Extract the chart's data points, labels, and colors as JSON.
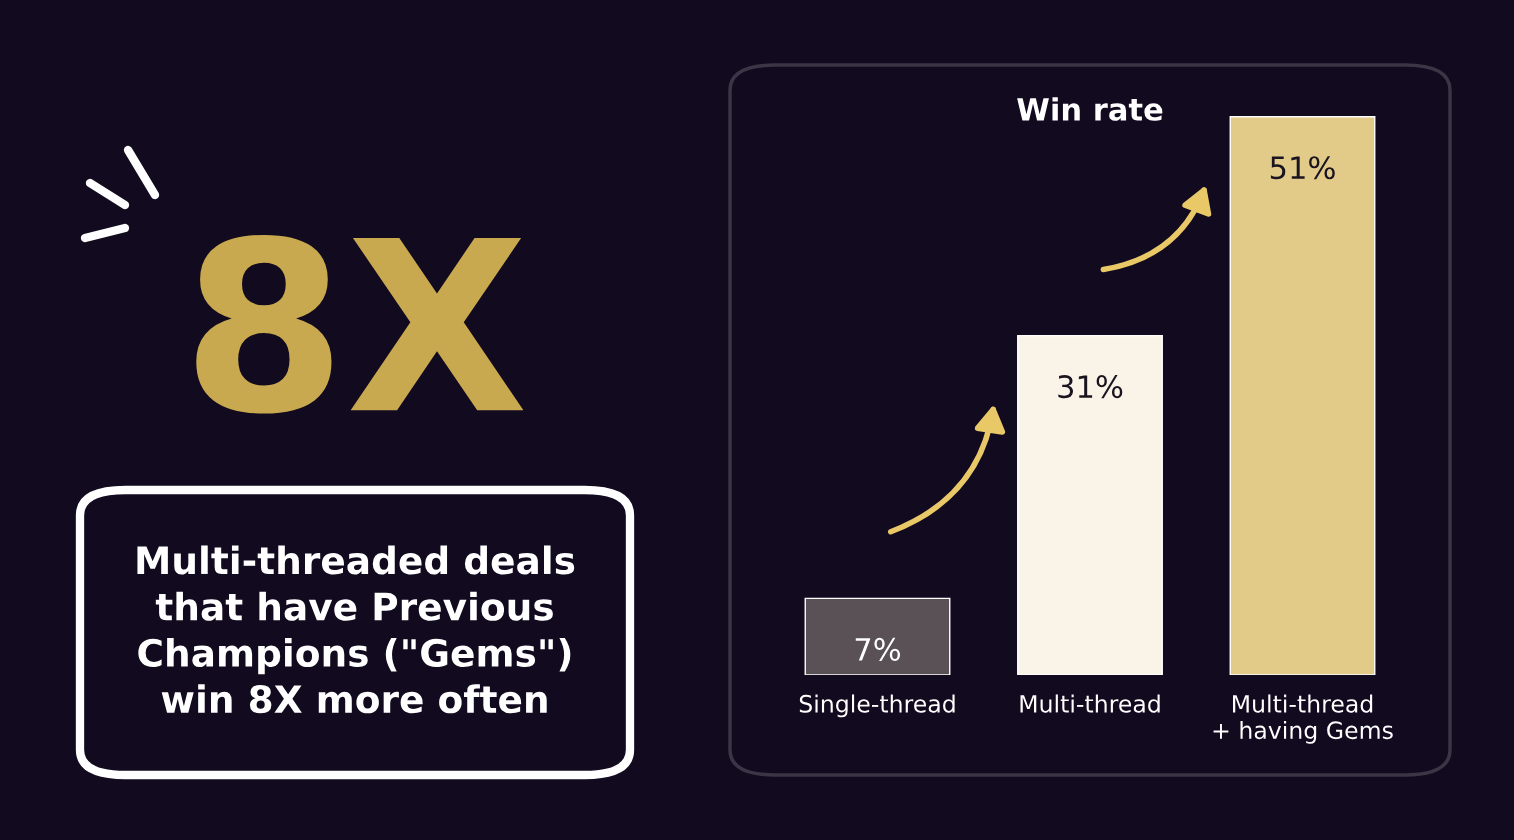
{
  "chart_data": {
    "type": "bar",
    "title": "Win rate",
    "categories": [
      "Single-thread",
      "Multi-thread",
      "Multi-thread\n+ having Gems"
    ],
    "values": [
      7,
      31,
      51
    ],
    "colors": [
      "#5a5057",
      "#fcf5e4",
      "#f1d27a"
    ],
    "value_labels": [
      "7%",
      "31%",
      "51%"
    ],
    "annotations": [
      "8X",
      "Multi-threaded deals\nthat have Previous\nChampions (\"Gems\")\nwin 8X more often"
    ]
  }
}
